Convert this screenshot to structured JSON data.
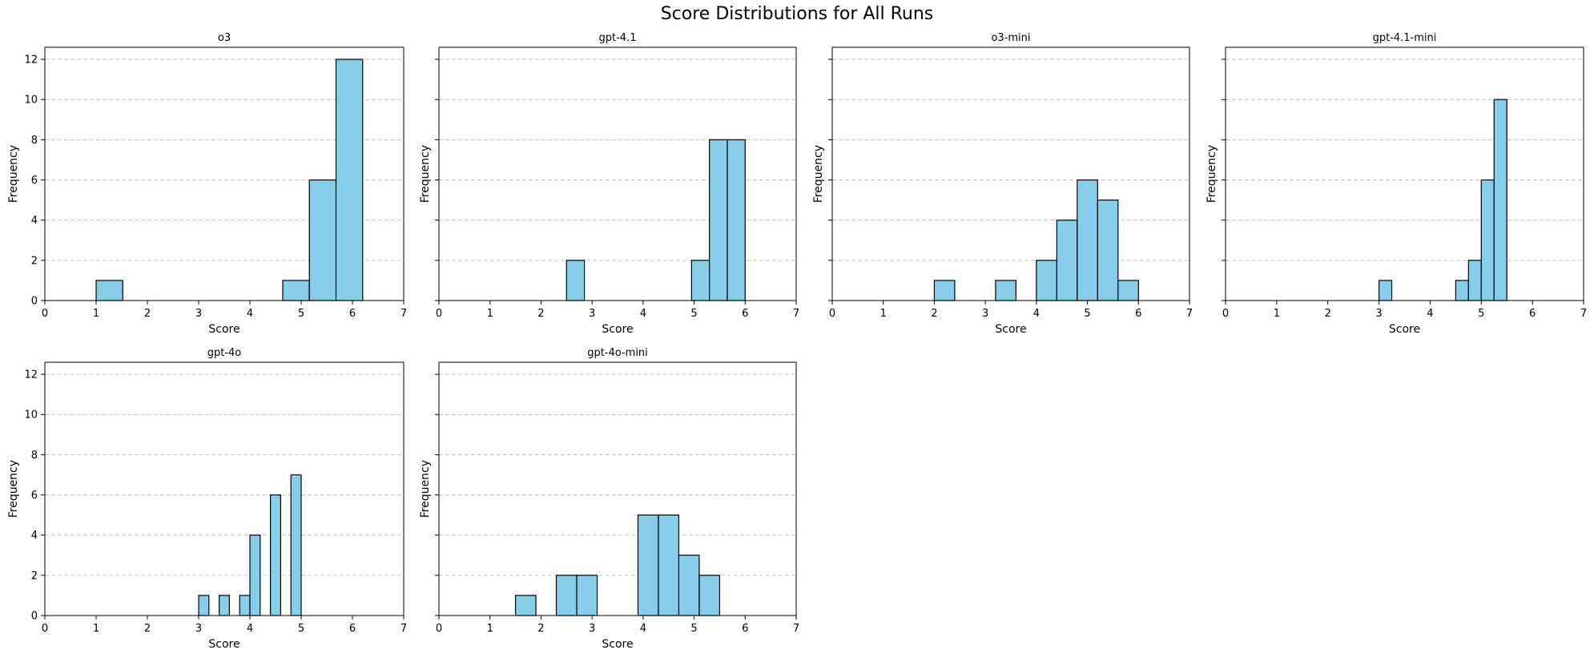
{
  "figure": {
    "title": "Score Distributions for All Runs"
  },
  "style": {
    "bar_fill": "#87ceeb",
    "bar_edge": "#000000",
    "grid_color": "#c0c0c0"
  },
  "chart_data": [
    {
      "type": "bar",
      "title": "o3",
      "xlabel": "Score",
      "ylabel": "Frequency",
      "xlim": [
        0,
        7
      ],
      "ylim": [
        0,
        12.6
      ],
      "xticks": [
        0,
        1,
        2,
        3,
        4,
        5,
        6,
        7
      ],
      "yticks": [
        0,
        2,
        4,
        6,
        8,
        10,
        12
      ],
      "grid": "y dashed",
      "bins": [
        {
          "x0": 1.0,
          "x1": 1.52,
          "count": 1
        },
        {
          "x0": 4.64,
          "x1": 5.16,
          "count": 1
        },
        {
          "x0": 5.16,
          "x1": 5.68,
          "count": 6
        },
        {
          "x0": 5.68,
          "x1": 6.2,
          "count": 12
        }
      ]
    },
    {
      "type": "bar",
      "title": "gpt-4.1",
      "xlabel": "Score",
      "ylabel": "Frequency",
      "xlim": [
        0,
        7
      ],
      "ylim": [
        0,
        12.6
      ],
      "xticks": [
        0,
        1,
        2,
        3,
        4,
        5,
        6,
        7
      ],
      "yticks": [
        0,
        2,
        4,
        6,
        8,
        10,
        12
      ],
      "grid": "y dashed",
      "bins": [
        {
          "x0": 2.5,
          "x1": 2.85,
          "count": 2
        },
        {
          "x0": 4.95,
          "x1": 5.3,
          "count": 2
        },
        {
          "x0": 5.3,
          "x1": 5.65,
          "count": 8
        },
        {
          "x0": 5.65,
          "x1": 6.0,
          "count": 8
        }
      ]
    },
    {
      "type": "bar",
      "title": "o3-mini",
      "xlabel": "Score",
      "ylabel": "Frequency",
      "xlim": [
        0,
        7
      ],
      "ylim": [
        0,
        12.6
      ],
      "xticks": [
        0,
        1,
        2,
        3,
        4,
        5,
        6,
        7
      ],
      "yticks": [
        0,
        2,
        4,
        6,
        8,
        10,
        12
      ],
      "grid": "y dashed",
      "bins": [
        {
          "x0": 2.0,
          "x1": 2.4,
          "count": 1
        },
        {
          "x0": 3.2,
          "x1": 3.6,
          "count": 1
        },
        {
          "x0": 4.0,
          "x1": 4.4,
          "count": 2
        },
        {
          "x0": 4.4,
          "x1": 4.8,
          "count": 4
        },
        {
          "x0": 4.8,
          "x1": 5.2,
          "count": 6
        },
        {
          "x0": 5.2,
          "x1": 5.6,
          "count": 5
        },
        {
          "x0": 5.6,
          "x1": 6.0,
          "count": 1
        }
      ]
    },
    {
      "type": "bar",
      "title": "gpt-4.1-mini",
      "xlabel": "Score",
      "ylabel": "Frequency",
      "xlim": [
        0,
        7
      ],
      "ylim": [
        0,
        12.6
      ],
      "xticks": [
        0,
        1,
        2,
        3,
        4,
        5,
        6,
        7
      ],
      "yticks": [
        0,
        2,
        4,
        6,
        8,
        10,
        12
      ],
      "grid": "y dashed",
      "bins": [
        {
          "x0": 3.0,
          "x1": 3.25,
          "count": 1
        },
        {
          "x0": 4.5,
          "x1": 4.75,
          "count": 1
        },
        {
          "x0": 4.75,
          "x1": 5.0,
          "count": 2
        },
        {
          "x0": 5.0,
          "x1": 5.25,
          "count": 6
        },
        {
          "x0": 5.25,
          "x1": 5.5,
          "count": 10
        }
      ]
    },
    {
      "type": "bar",
      "title": "gpt-4o",
      "xlabel": "Score",
      "ylabel": "Frequency",
      "xlim": [
        0,
        7
      ],
      "ylim": [
        0,
        12.6
      ],
      "xticks": [
        0,
        1,
        2,
        3,
        4,
        5,
        6,
        7
      ],
      "yticks": [
        0,
        2,
        4,
        6,
        8,
        10,
        12
      ],
      "grid": "y dashed",
      "bins": [
        {
          "x0": 3.0,
          "x1": 3.2,
          "count": 1
        },
        {
          "x0": 3.4,
          "x1": 3.6,
          "count": 1
        },
        {
          "x0": 3.8,
          "x1": 4.0,
          "count": 1
        },
        {
          "x0": 4.0,
          "x1": 4.2,
          "count": 4
        },
        {
          "x0": 4.4,
          "x1": 4.6,
          "count": 6
        },
        {
          "x0": 4.8,
          "x1": 5.0,
          "count": 7
        }
      ]
    },
    {
      "type": "bar",
      "title": "gpt-4o-mini",
      "xlabel": "Score",
      "ylabel": "Frequency",
      "xlim": [
        0,
        7
      ],
      "ylim": [
        0,
        12.6
      ],
      "xticks": [
        0,
        1,
        2,
        3,
        4,
        5,
        6,
        7
      ],
      "yticks": [
        0,
        2,
        4,
        6,
        8,
        10,
        12
      ],
      "grid": "y dashed",
      "bins": [
        {
          "x0": 1.5,
          "x1": 1.9,
          "count": 1
        },
        {
          "x0": 2.3,
          "x1": 2.7,
          "count": 2
        },
        {
          "x0": 2.7,
          "x1": 3.1,
          "count": 2
        },
        {
          "x0": 3.9,
          "x1": 4.3,
          "count": 5
        },
        {
          "x0": 4.3,
          "x1": 4.7,
          "count": 5
        },
        {
          "x0": 4.7,
          "x1": 5.1,
          "count": 3
        },
        {
          "x0": 5.1,
          "x1": 5.5,
          "count": 2
        }
      ]
    }
  ]
}
